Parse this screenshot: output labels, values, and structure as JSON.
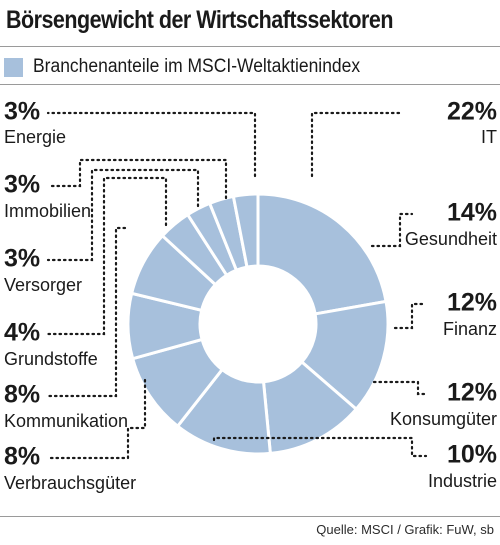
{
  "header": {
    "title": "Börsengewicht der Wirtschaftssektoren",
    "legend_label": "Branchenanteile im MSCI-Weltaktienindex"
  },
  "footer": {
    "source": "Quelle: MSCI / Grafik: FuW, sb"
  },
  "colors": {
    "slice": "#a7c0dc",
    "separator": "#ffffff",
    "leader": "#1a1a1a"
  },
  "chart_data": {
    "type": "pie",
    "title": "Börsengewicht der Wirtschaftssektoren",
    "legend": [
      "Branchenanteile im MSCI-Weltaktienindex"
    ],
    "slices": [
      {
        "label": "IT",
        "value": 22,
        "value_label": "22%"
      },
      {
        "label": "Gesundheit",
        "value": 14,
        "value_label": "14%"
      },
      {
        "label": "Finanz",
        "value": 12,
        "value_label": "12%"
      },
      {
        "label": "Konsumgüter",
        "value": 12,
        "value_label": "12%"
      },
      {
        "label": "Industrie",
        "value": 10,
        "value_label": "10%"
      },
      {
        "label": "Verbrauchsgüter",
        "value": 8,
        "value_label": "8%"
      },
      {
        "label": "Kommunikation",
        "value": 8,
        "value_label": "8%"
      },
      {
        "label": "Grundstoffe",
        "value": 4,
        "value_label": "4%"
      },
      {
        "label": "Versorger",
        "value": 3,
        "value_label": "3%"
      },
      {
        "label": "Immobilien",
        "value": 3,
        "value_label": "3%"
      },
      {
        "label": "Energie",
        "value": 3,
        "value_label": "3%"
      }
    ]
  }
}
